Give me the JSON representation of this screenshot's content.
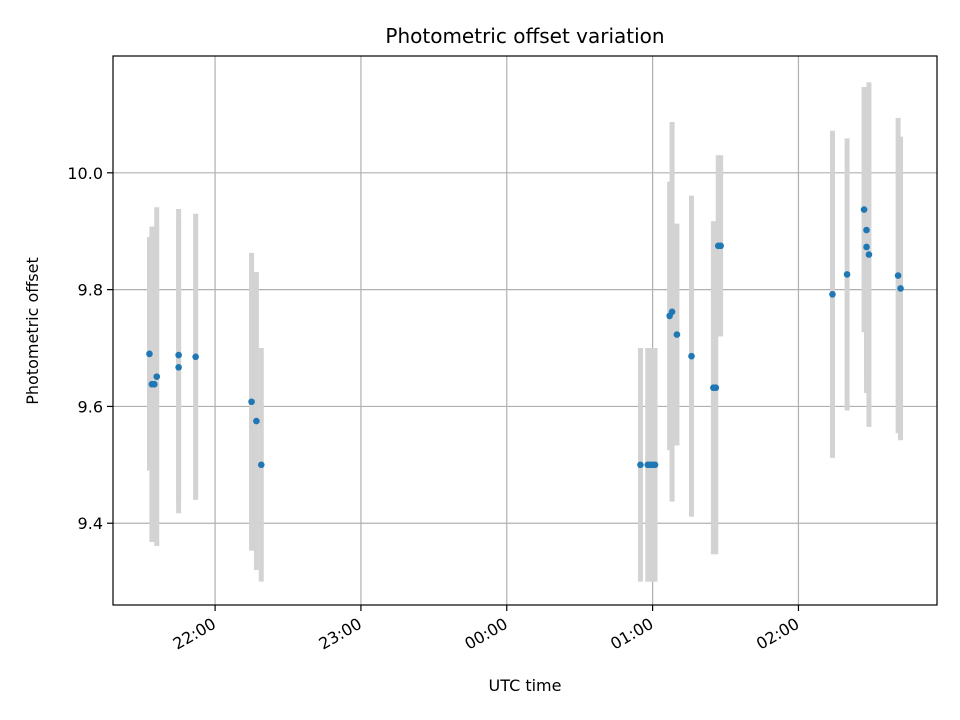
{
  "chart_data": {
    "type": "scatter",
    "title": "Photometric offset variation",
    "xlabel": "UTC time",
    "ylabel": "Photometric offset",
    "x_unit": "UTC time (HH:MM)",
    "xlim": [
      "21:18",
      "02:57"
    ],
    "ylim": [
      9.26,
      10.2
    ],
    "x_ticks": [
      "22:00",
      "23:00",
      "00:00",
      "01:00",
      "02:00"
    ],
    "y_ticks": [
      9.4,
      9.6,
      9.8,
      10.0
    ],
    "y_tick_labels": [
      "9.4",
      "9.6",
      "9.8",
      "10.0"
    ],
    "grid": true,
    "marker_color": "#1f77b4",
    "errorbar_color": "#d3d3d3",
    "points": [
      {
        "x": "21:33",
        "y": 9.69,
        "err": 0.2
      },
      {
        "x": "21:34",
        "y": 9.638,
        "err": 0.27
      },
      {
        "x": "21:35",
        "y": 9.638,
        "err": 0.27
      },
      {
        "x": "21:36",
        "y": 9.651,
        "err": 0.29
      },
      {
        "x": "21:45",
        "y": 9.667,
        "err": 0.25
      },
      {
        "x": "21:45",
        "y": 9.688,
        "err": 0.25
      },
      {
        "x": "21:52",
        "y": 9.685,
        "err": 0.245
      },
      {
        "x": "22:15",
        "y": 9.608,
        "err": 0.255
      },
      {
        "x": "22:17",
        "y": 9.575,
        "err": 0.255
      },
      {
        "x": "22:19",
        "y": 9.5,
        "err": 0.2
      },
      {
        "x": "00:55",
        "y": 9.5,
        "err": 0.2
      },
      {
        "x": "00:58",
        "y": 9.5,
        "err": 0.2
      },
      {
        "x": "00:59",
        "y": 9.5,
        "err": 0.2
      },
      {
        "x": "01:00",
        "y": 9.5,
        "err": 0.2
      },
      {
        "x": "01:01",
        "y": 9.5,
        "err": 0.2
      },
      {
        "x": "01:07",
        "y": 9.755,
        "err": 0.23
      },
      {
        "x": "01:08",
        "y": 9.762,
        "err": 0.325
      },
      {
        "x": "01:10",
        "y": 9.723,
        "err": 0.19
      },
      {
        "x": "01:16",
        "y": 9.686,
        "err": 0.275
      },
      {
        "x": "01:25",
        "y": 9.632,
        "err": 0.285
      },
      {
        "x": "01:26",
        "y": 9.632,
        "err": 0.285
      },
      {
        "x": "01:27",
        "y": 9.875,
        "err": 0.155
      },
      {
        "x": "01:28",
        "y": 9.875,
        "err": 0.155
      },
      {
        "x": "02:14",
        "y": 9.792,
        "err": 0.28
      },
      {
        "x": "02:20",
        "y": 9.826,
        "err": 0.233
      },
      {
        "x": "02:27",
        "y": 9.937,
        "err": 0.21
      },
      {
        "x": "02:28",
        "y": 9.873,
        "err": 0.25
      },
      {
        "x": "02:28",
        "y": 9.902,
        "err": 0.24
      },
      {
        "x": "02:29",
        "y": 9.86,
        "err": 0.295
      },
      {
        "x": "02:41",
        "y": 9.824,
        "err": 0.27
      },
      {
        "x": "02:42",
        "y": 9.802,
        "err": 0.26
      }
    ]
  }
}
